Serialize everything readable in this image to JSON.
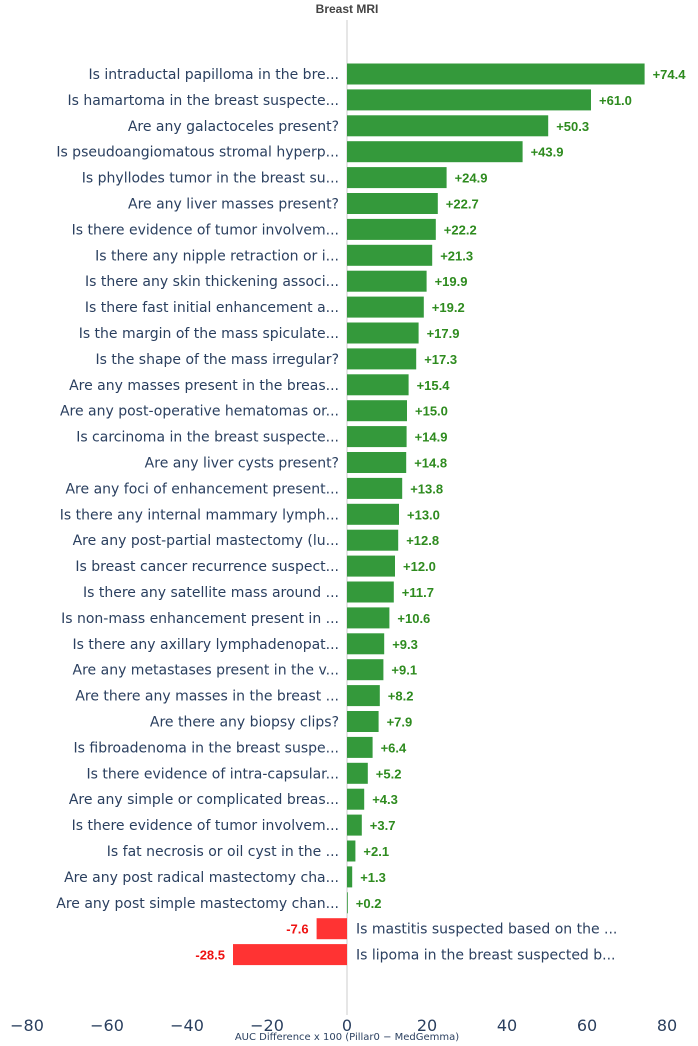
{
  "chart_data": {
    "type": "bar",
    "orientation": "horizontal",
    "title": "Breast MRI",
    "xlabel": "AUC Difference x 100 (Pillar0 − MedGemma)",
    "ylabel": "",
    "xlim": [
      -80,
      80
    ],
    "xticks": [
      -80,
      -60,
      -40,
      -20,
      0,
      20,
      40,
      60,
      80
    ],
    "xtick_labels": [
      "−80",
      "−60",
      "−40",
      "−20",
      "0",
      "20",
      "40",
      "60",
      "80"
    ],
    "grid": false,
    "colors": {
      "positive": "#34993b",
      "negative": "#ff3333",
      "positive_text": "#2e8b1f",
      "negative_text": "#ee1111",
      "zero_line": "#cccccc"
    },
    "categories": [
      "Is intraductal papilloma in the bre...",
      "Is hamartoma in the breast suspecte...",
      "Are any galactoceles present?",
      "Is pseudoangiomatous stromal hyperp...",
      "Is phyllodes tumor in the breast su...",
      "Are any liver masses present?",
      "Is there evidence of tumor involvem...",
      "Is there any nipple retraction or i...",
      "Is there any skin thickening associ...",
      "Is there fast initial enhancement a...",
      "Is the margin of the mass spiculate...",
      "Is the shape of the mass irregular?",
      "Are any masses present in the breas...",
      "Are any post-operative hematomas or...",
      "Is carcinoma in the breast suspecte...",
      "Are any liver cysts present?",
      "Are any foci of enhancement present...",
      "Is there any internal mammary lymph...",
      "Are any post-partial mastectomy (lu...",
      "Is breast cancer recurrence suspect...",
      "Is there any satellite mass around ...",
      "Is non-mass enhancement present in ...",
      "Is there any axillary lymphadenopat...",
      "Are any metastases present in the v...",
      "Are there any masses in the breast ...",
      "Are there any biopsy clips?",
      "Is fibroadenoma in the breast suspe...",
      "Is there evidence of intra-capsular...",
      "Are any simple or complicated breas...",
      "Is there evidence of tumor involvem...",
      "Is fat necrosis or oil cyst in the ...",
      "Are any post radical mastectomy cha...",
      "Are any post simple mastectomy chan...",
      "Is mastitis suspected based on the ...",
      "Is lipoma in the breast suspected b..."
    ],
    "values": [
      74.4,
      61.0,
      50.3,
      43.9,
      24.9,
      22.7,
      22.2,
      21.3,
      19.9,
      19.2,
      17.9,
      17.3,
      15.4,
      15.0,
      14.9,
      14.8,
      13.8,
      13.0,
      12.8,
      12.0,
      11.7,
      10.6,
      9.3,
      9.1,
      8.2,
      7.9,
      6.4,
      5.2,
      4.3,
      3.7,
      2.1,
      1.3,
      0.2,
      -7.6,
      -28.5
    ],
    "value_labels": [
      "+74.4",
      "+61.0",
      "+50.3",
      "+43.9",
      "+24.9",
      "+22.7",
      "+22.2",
      "+21.3",
      "+19.9",
      "+19.2",
      "+17.9",
      "+17.3",
      "+15.4",
      "+15.0",
      "+14.9",
      "+14.8",
      "+13.8",
      "+13.0",
      "+12.8",
      "+12.0",
      "+11.7",
      "+10.6",
      "+9.3",
      "+9.1",
      "+8.2",
      "+7.9",
      "+6.4",
      "+5.2",
      "+4.3",
      "+3.7",
      "+2.1",
      "+1.3",
      "+0.2",
      "-7.6",
      "-28.5"
    ]
  }
}
